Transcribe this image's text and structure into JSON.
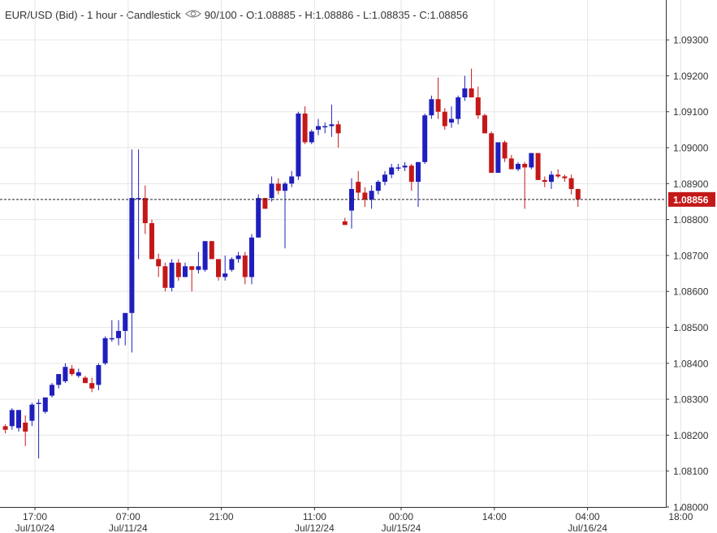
{
  "header": {
    "symbol": "EUR/USD (Bid)",
    "interval": "1 hour",
    "style": "Candlestick",
    "visibility": "90/100",
    "open": "O:1.08885",
    "high": "H:1.08886",
    "low": "L:1.08835",
    "close": "C:1.08856",
    "separator": " - "
  },
  "colors": {
    "up": "#1f1fbe",
    "down": "#c41818",
    "grid": "#e6e6e6",
    "axis": "#333333",
    "text": "#333333",
    "last_price_bg": "#c41818"
  },
  "chart_data": {
    "type": "candlestick",
    "title": "EUR/USD (Bid) - 1 hour - Candlestick",
    "ylim": [
      1.08,
      1.0935
    ],
    "yticks": [
      "1.09300",
      "1.09200",
      "1.09100",
      "1.09000",
      "1.08900",
      "1.08800",
      "1.08700",
      "1.08600",
      "1.08500",
      "1.08400",
      "1.08300",
      "1.08200",
      "1.08100",
      "1.08000"
    ],
    "xticks": [
      {
        "index": 2,
        "time": "17:00",
        "date": "Jul/10/24"
      },
      {
        "index": 16,
        "time": "07:00",
        "date": "Jul/11/24"
      },
      {
        "index": 30,
        "time": "21:00",
        "date": ""
      },
      {
        "index": 44,
        "time": "11:00",
        "date": "Jul/12/24"
      },
      {
        "index": 57,
        "time": "00:00",
        "date": "Jul/15/24"
      },
      {
        "index": 71,
        "time": "14:00",
        "date": ""
      },
      {
        "index": 85,
        "time": "04:00",
        "date": "Jul/16/24"
      },
      {
        "index": 99,
        "time": "18:00",
        "date": ""
      }
    ],
    "last_price": "1.08856",
    "last_value": 1.08856,
    "grid": true,
    "ohlc": [
      [
        1.08225,
        1.0823,
        1.08205,
        1.08215
      ],
      [
        1.08225,
        1.08275,
        1.08215,
        1.0827
      ],
      [
        1.0822,
        1.0827,
        1.0821,
        1.0827
      ],
      [
        1.08235,
        1.08255,
        1.0817,
        1.0821
      ],
      [
        1.0824,
        1.0829,
        1.08225,
        1.08285
      ],
      [
        1.0829,
        1.083,
        1.08135,
        1.0829
      ],
      [
        1.08265,
        1.08305,
        1.0826,
        1.08305
      ],
      [
        1.0831,
        1.08345,
        1.08305,
        1.0834
      ],
      [
        1.0834,
        1.0837,
        1.0833,
        1.0837
      ],
      [
        1.0835,
        1.084,
        1.08345,
        1.0839
      ],
      [
        1.08385,
        1.08395,
        1.08365,
        1.0837
      ],
      [
        1.08365,
        1.08385,
        1.0836,
        1.08375
      ],
      [
        1.0836,
        1.08365,
        1.08345,
        1.08345
      ],
      [
        1.08345,
        1.0836,
        1.0832,
        1.0833
      ],
      [
        1.0834,
        1.084,
        1.08325,
        1.08395
      ],
      [
        1.084,
        1.08475,
        1.08395,
        1.0847
      ],
      [
        1.0847,
        1.0852,
        1.0846,
        1.0847
      ],
      [
        1.0847,
        1.0852,
        1.0845,
        1.0849
      ],
      [
        1.0849,
        1.0853,
        1.0845,
        1.0854
      ],
      [
        1.0854,
        1.08995,
        1.0843,
        1.0886
      ],
      [
        1.0886,
        1.08995,
        1.0869,
        1.0886
      ],
      [
        1.0886,
        1.08895,
        1.0876,
        1.0879
      ],
      [
        1.0879,
        1.088,
        1.0869,
        1.0869
      ],
      [
        1.0869,
        1.08705,
        1.0864,
        1.0867
      ],
      [
        1.0867,
        1.0868,
        1.086,
        1.0861
      ],
      [
        1.0861,
        1.0869,
        1.086,
        1.0868
      ],
      [
        1.0868,
        1.0869,
        1.0863,
        1.0864
      ],
      [
        1.0864,
        1.0868,
        1.0864,
        1.0867
      ],
      [
        1.0867,
        1.0867,
        1.086,
        1.0866
      ],
      [
        1.0866,
        1.0871,
        1.0865,
        1.0867
      ],
      [
        1.0866,
        1.0874,
        1.08655,
        1.0874
      ],
      [
        1.0874,
        1.0874,
        1.0869,
        1.0869
      ],
      [
        1.0869,
        1.0869,
        1.0863,
        1.0864
      ],
      [
        1.0864,
        1.087,
        1.0863,
        1.0865
      ],
      [
        1.0866,
        1.08695,
        1.08655,
        1.0869
      ],
      [
        1.0869,
        1.0871,
        1.0868,
        1.087
      ],
      [
        1.087,
        1.0871,
        1.0862,
        1.0864
      ],
      [
        1.0864,
        1.0876,
        1.0862,
        1.0875
      ],
      [
        1.0875,
        1.0887,
        1.0875,
        1.0886
      ],
      [
        1.0886,
        1.0886,
        1.0883,
        1.0883
      ],
      [
        1.0886,
        1.0892,
        1.0885,
        1.089
      ],
      [
        1.089,
        1.08915,
        1.0887,
        1.0888
      ],
      [
        1.0888,
        1.08905,
        1.0872,
        1.089
      ],
      [
        1.089,
        1.08935,
        1.0889,
        1.0892
      ],
      [
        1.0892,
        1.091,
        1.0891,
        1.09095
      ],
      [
        1.09095,
        1.09115,
        1.0901,
        1.09015
      ],
      [
        1.09015,
        1.0905,
        1.0901,
        1.09045
      ],
      [
        1.0905,
        1.0908,
        1.09035,
        1.0906
      ],
      [
        1.0906,
        1.0907,
        1.0904,
        1.0906
      ],
      [
        1.0906,
        1.0912,
        1.0903,
        1.09065
      ],
      [
        1.09065,
        1.09075,
        1.09,
        1.0904
      ],
      [
        1.08795,
        1.08805,
        1.08785,
        1.08785
      ],
      [
        1.08825,
        1.08915,
        1.08775,
        1.08885
      ],
      [
        1.08905,
        1.08935,
        1.08855,
        1.08875
      ],
      [
        1.08875,
        1.0889,
        1.08835,
        1.08855
      ],
      [
        1.08855,
        1.08895,
        1.0883,
        1.0888
      ],
      [
        1.0888,
        1.0891,
        1.0887,
        1.08905
      ],
      [
        1.08905,
        1.08935,
        1.08895,
        1.08925
      ],
      [
        1.08925,
        1.08955,
        1.08915,
        1.08945
      ],
      [
        1.08945,
        1.08955,
        1.08935,
        1.08945
      ],
      [
        1.08945,
        1.0896,
        1.08935,
        1.0895
      ],
      [
        1.0895,
        1.08955,
        1.0888,
        1.08905
      ],
      [
        1.08905,
        1.0896,
        1.08835,
        1.0896
      ],
      [
        1.0896,
        1.09095,
        1.08955,
        1.0909
      ],
      [
        1.0909,
        1.09145,
        1.0908,
        1.09135
      ],
      [
        1.09135,
        1.09195,
        1.0908,
        1.091
      ],
      [
        1.091,
        1.0911,
        1.0905,
        1.0906
      ],
      [
        1.0907,
        1.09115,
        1.09055,
        1.0908
      ],
      [
        1.0908,
        1.09145,
        1.09065,
        1.0914
      ],
      [
        1.0914,
        1.092,
        1.0913,
        1.09165
      ],
      [
        1.09165,
        1.0922,
        1.0915,
        1.0914
      ],
      [
        1.0914,
        1.0917,
        1.0908,
        1.0909
      ],
      [
        1.0909,
        1.09095,
        1.0904,
        1.0904
      ],
      [
        1.0904,
        1.09045,
        1.0893,
        1.0893
      ],
      [
        1.0893,
        1.09015,
        1.0893,
        1.09015
      ],
      [
        1.09015,
        1.0902,
        1.0896,
        1.0897
      ],
      [
        1.0897,
        1.0898,
        1.0894,
        1.0894
      ],
      [
        1.0894,
        1.0896,
        1.08935,
        1.08955
      ],
      [
        1.08955,
        1.0896,
        1.0883,
        1.08945
      ],
      [
        1.08945,
        1.08985,
        1.0894,
        1.08985
      ],
      [
        1.08985,
        1.08985,
        1.0891,
        1.0891
      ],
      [
        1.0891,
        1.0892,
        1.0889,
        1.08905
      ],
      [
        1.08905,
        1.08935,
        1.08885,
        1.08925
      ],
      [
        1.08925,
        1.0894,
        1.08915,
        1.0892
      ],
      [
        1.0892,
        1.08925,
        1.08905,
        1.08915
      ],
      [
        1.08915,
        1.08925,
        1.0887,
        1.08885
      ],
      [
        1.08885,
        1.08886,
        1.08835,
        1.08856
      ]
    ]
  }
}
